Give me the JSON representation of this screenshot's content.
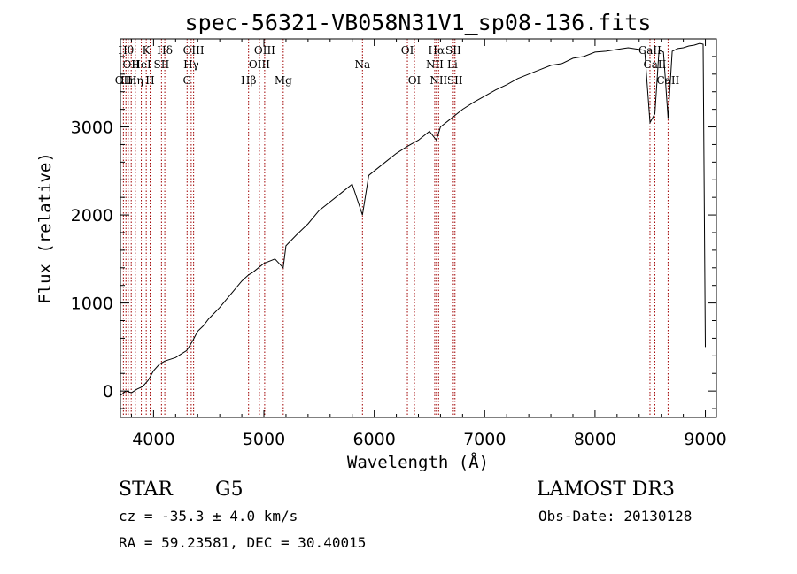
{
  "chart_data": {
    "type": "line",
    "title": "spec-56321-VB058N31V1_sp08-136.fits",
    "xlabel": "Wavelength (Å)",
    "ylabel": "Flux (relative)",
    "xlim": [
      3700,
      9100
    ],
    "ylim": [
      -300,
      4000
    ],
    "x_ticks": [
      4000,
      5000,
      6000,
      7000,
      8000,
      9000
    ],
    "x_tick_labels": [
      "4000",
      "5000",
      "6000",
      "7000",
      "8000",
      "9000"
    ],
    "y_ticks": [
      0,
      1000,
      2000,
      3000
    ],
    "y_tick_labels": [
      "0",
      "1000",
      "2000",
      "3000"
    ],
    "series": [
      {
        "name": "flux",
        "x": [
          3700,
          3750,
          3800,
          3850,
          3900,
          3950,
          4000,
          4050,
          4100,
          4150,
          4200,
          4250,
          4300,
          4350,
          4400,
          4450,
          4500,
          4600,
          4700,
          4800,
          4861,
          4900,
          5000,
          5100,
          5175,
          5200,
          5300,
          5400,
          5500,
          5600,
          5700,
          5800,
          5893,
          5950,
          6000,
          6100,
          6200,
          6300,
          6400,
          6500,
          6563,
          6600,
          6700,
          6800,
          6900,
          7000,
          7100,
          7200,
          7300,
          7400,
          7500,
          7600,
          7700,
          7800,
          7900,
          8000,
          8100,
          8200,
          8300,
          8400,
          8450,
          8498,
          8542,
          8580,
          8620,
          8662,
          8700,
          8750,
          8800,
          8850,
          8900,
          8950,
          8980,
          9000
        ],
        "y": [
          -50,
          0,
          -20,
          20,
          50,
          120,
          230,
          300,
          340,
          360,
          380,
          420,
          460,
          560,
          680,
          740,
          820,
          950,
          1100,
          1250,
          1320,
          1350,
          1450,
          1500,
          1400,
          1650,
          1780,
          1900,
          2050,
          2150,
          2250,
          2350,
          2000,
          2450,
          2500,
          2600,
          2700,
          2780,
          2850,
          2950,
          2850,
          3000,
          3100,
          3200,
          3280,
          3350,
          3420,
          3480,
          3550,
          3600,
          3650,
          3700,
          3720,
          3780,
          3800,
          3850,
          3860,
          3880,
          3900,
          3880,
          3870,
          3050,
          3150,
          3870,
          3850,
          3100,
          3860,
          3890,
          3900,
          3920,
          3930,
          3950,
          3940,
          500
        ]
      }
    ],
    "spectral_lines": [
      {
        "wavelength": 3727,
        "labels": [
          "OII"
        ],
        "row": 3
      },
      {
        "wavelength": 3750,
        "labels": [
          "Hθ"
        ],
        "row": 1
      },
      {
        "wavelength": 3771,
        "labels": [
          "Hη"
        ],
        "row": 3
      },
      {
        "wavelength": 3798,
        "labels": [
          "OII"
        ],
        "row": 2
      },
      {
        "wavelength": 3835,
        "labels": [
          "Hη"
        ],
        "row": 3
      },
      {
        "wavelength": 3889,
        "labels": [
          "HeI"
        ],
        "row": 2
      },
      {
        "wavelength": 3934,
        "labels": [
          "K"
        ],
        "row": 1
      },
      {
        "wavelength": 3969,
        "labels": [
          "H"
        ],
        "row": 3
      },
      {
        "wavelength": 4072,
        "labels": [
          "SII"
        ],
        "row": 2
      },
      {
        "wavelength": 4102,
        "labels": [
          "Hδ"
        ],
        "row": 1
      },
      {
        "wavelength": 4304,
        "labels": [
          "G"
        ],
        "row": 3
      },
      {
        "wavelength": 4341,
        "labels": [
          "Hγ"
        ],
        "row": 2
      },
      {
        "wavelength": 4363,
        "labels": [
          "OIII"
        ],
        "row": 1
      },
      {
        "wavelength": 4861,
        "labels": [
          "Hβ"
        ],
        "row": 3
      },
      {
        "wavelength": 4959,
        "labels": [
          "OIII"
        ],
        "row": 2
      },
      {
        "wavelength": 5007,
        "labels": [
          "OIII"
        ],
        "row": 1
      },
      {
        "wavelength": 5175,
        "labels": [
          "Mg"
        ],
        "row": 3
      },
      {
        "wavelength": 5893,
        "labels": [
          "Na"
        ],
        "row": 2
      },
      {
        "wavelength": 6300,
        "labels": [
          "OI"
        ],
        "row": 1
      },
      {
        "wavelength": 6364,
        "labels": [
          "OI"
        ],
        "row": 3
      },
      {
        "wavelength": 6548,
        "labels": [
          "NII"
        ],
        "row": 2
      },
      {
        "wavelength": 6563,
        "labels": [
          "Hα"
        ],
        "row": 1
      },
      {
        "wavelength": 6583,
        "labels": [
          "NII"
        ],
        "row": 3
      },
      {
        "wavelength": 6708,
        "labels": [
          "Li"
        ],
        "row": 2
      },
      {
        "wavelength": 6716,
        "labels": [
          "SII"
        ],
        "row": 1
      },
      {
        "wavelength": 6731,
        "labels": [
          "SII"
        ],
        "row": 3
      },
      {
        "wavelength": 8498,
        "labels": [
          "CaII"
        ],
        "row": 1
      },
      {
        "wavelength": 8542,
        "labels": [
          "CaII"
        ],
        "row": 2
      },
      {
        "wavelength": 8662,
        "labels": [
          "CaII"
        ],
        "row": 3
      }
    ]
  },
  "info": {
    "class": "STAR",
    "subclass": "G5",
    "survey": "LAMOST DR3",
    "cz": "cz = -35.3 ± 4.0 km/s",
    "obs_date": "Obs-Date: 20130128",
    "coords": "RA =  59.23581, DEC =  30.40015"
  },
  "colors": {
    "line_marker": "#a00000",
    "spectrum": "#000000",
    "axes": "#000000"
  }
}
